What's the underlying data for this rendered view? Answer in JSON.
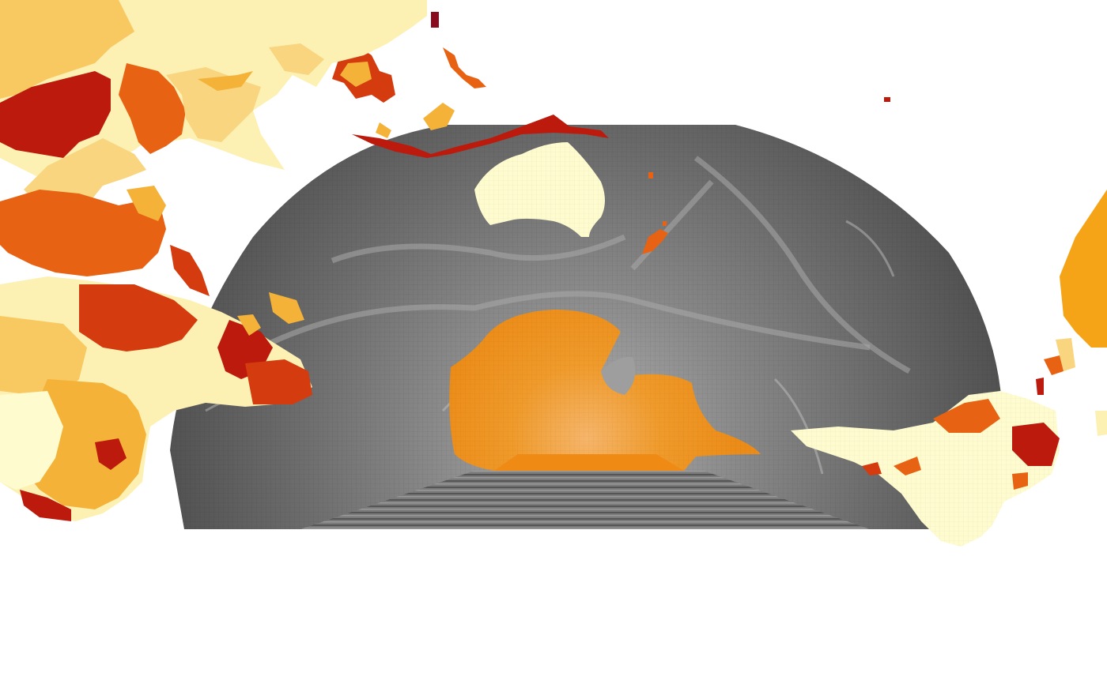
{
  "map": {
    "projection": "polar-fan",
    "ocean_palette": [
      "#3e3e3e",
      "#5a5a5a",
      "#777777",
      "#9a9a9a",
      "#c4c4c4"
    ],
    "land_palette": {
      "lightest": "#fefccf",
      "light": "#fdf0b3",
      "pale": "#f8d57e",
      "yellow_orange": "#f4b239",
      "orange": "#ef8f1b",
      "dark_orange": "#e76213",
      "red_orange": "#d43b0e",
      "red": "#bb1a0c",
      "dark_red": "#8a0a1e"
    },
    "landmasses": [
      {
        "name": "australia",
        "color_key": "lightest"
      },
      {
        "name": "antarctica",
        "color_key": "orange"
      },
      {
        "name": "south-america",
        "color_key": "lightest"
      },
      {
        "name": "africa",
        "color_key": "yellow_orange"
      },
      {
        "name": "asia",
        "color_key": "light"
      },
      {
        "name": "new-zealand",
        "color_key": "dark_orange"
      }
    ]
  }
}
